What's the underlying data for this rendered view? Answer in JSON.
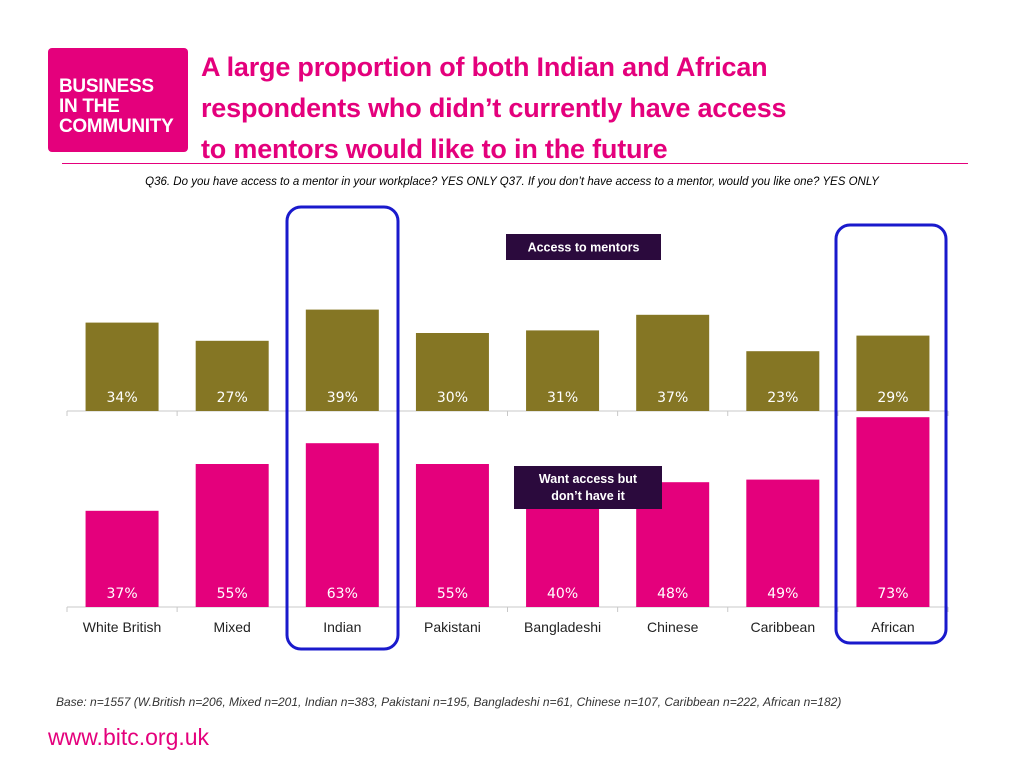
{
  "logo": {
    "lines": [
      "BUSINESS",
      "IN THE",
      "COMMUNITY"
    ]
  },
  "title_lines": [
    "A large proportion of both Indian and African",
    "respondents who didn’t currently have access",
    "to mentors would like to in the future"
  ],
  "question": "Q36. Do you have access to a mentor in your workplace? YES ONLY Q37. If you don’t have access to a mentor, would you like one? YES ONLY",
  "colors": {
    "brand": "#e4007c",
    "access_bar": "#857624",
    "want_bar": "#e4007c",
    "label_box": "#2b0a3d",
    "highlight": "#1a1acc"
  },
  "chart_data": {
    "type": "bar",
    "categories": [
      "White British",
      "Mixed",
      "Indian",
      "Pakistani",
      "Bangladeshi",
      "Chinese",
      "Caribbean",
      "African"
    ],
    "series": [
      {
        "name": "Access to mentors",
        "values": [
          34,
          27,
          39,
          30,
          31,
          37,
          23,
          29
        ],
        "color": "#857624"
      },
      {
        "name": "Want access  but don’t have it",
        "values": [
          37,
          55,
          63,
          55,
          40,
          48,
          49,
          73
        ],
        "color": "#e4007c"
      }
    ],
    "value_suffix": "%",
    "highlighted_categories": [
      "Indian",
      "African"
    ]
  },
  "base_note": "Base: n=1557 (W.British n=206, Mixed n=201, Indian n=383, Pakistani n=195, Bangladeshi n=61, Chinese n=107, Caribbean n=222, African n=182)",
  "url": "www.bitc.org.uk"
}
